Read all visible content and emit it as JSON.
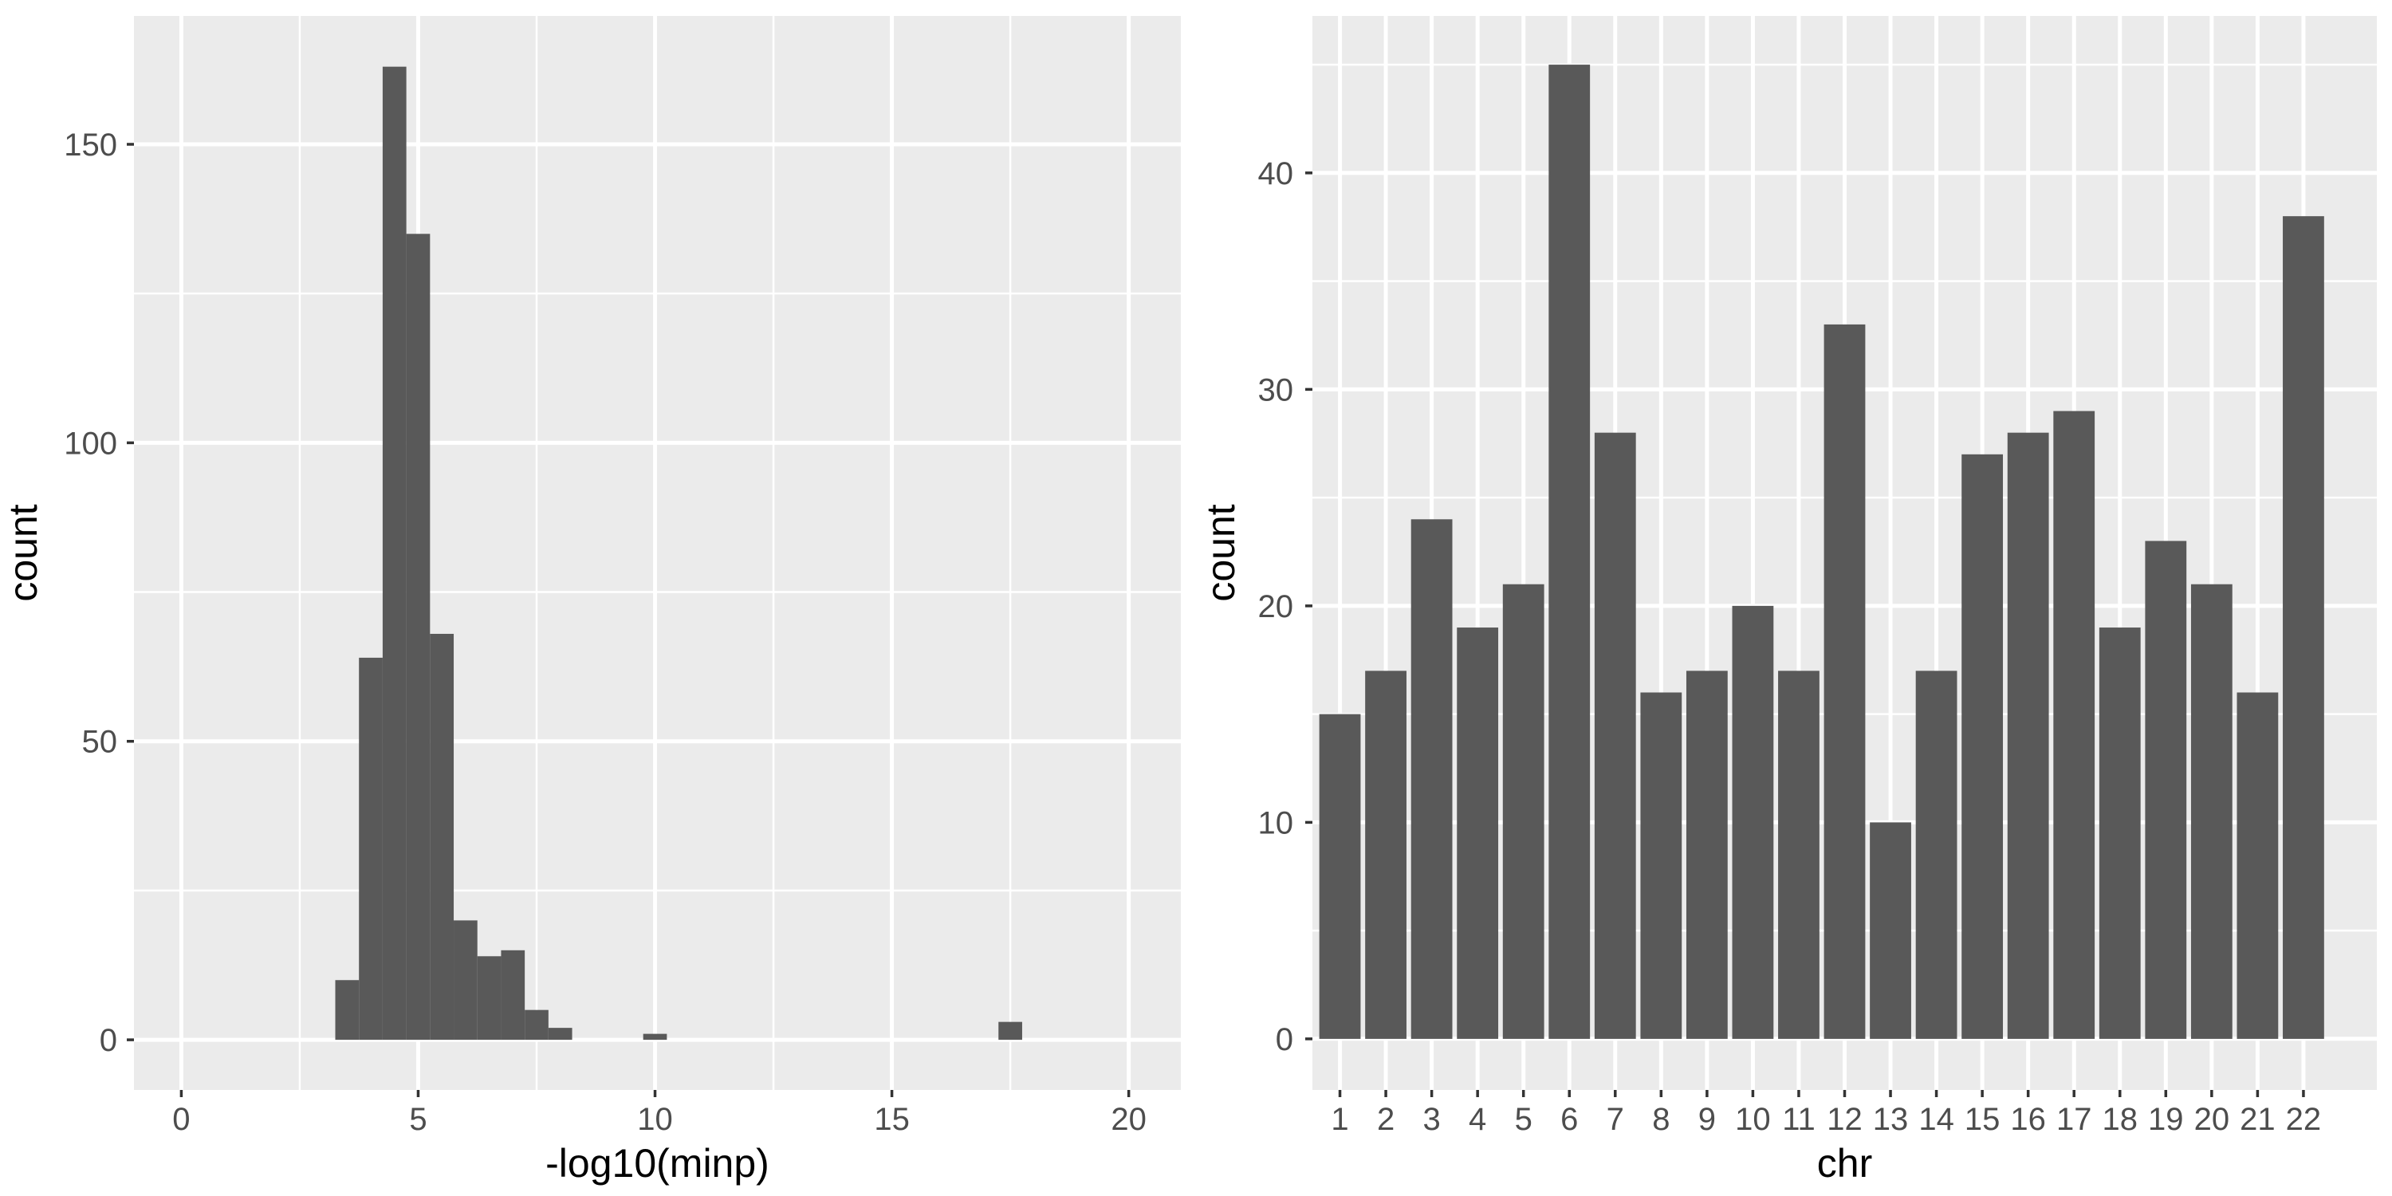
{
  "page": {
    "background": "#FFFFFF"
  },
  "style": {
    "panel_bg": "#EBEBEB",
    "grid_color": "#FFFFFF",
    "bar_fill": "#595959",
    "tick_color": "#333333",
    "tick_label_color": "#4D4D4D",
    "axis_title_color": "#000000"
  },
  "chart_data": [
    {
      "type": "histogram",
      "title": "",
      "xlabel": "-log10(minp)",
      "ylabel": "count",
      "x_ticks": [
        0,
        5,
        10,
        15,
        20
      ],
      "y_ticks": [
        0,
        50,
        100,
        150
      ],
      "xlim": [
        -1.0,
        21.1
      ],
      "ylim": [
        -8.4,
        171.5
      ],
      "grid": true,
      "legend_position": "none",
      "binwidth": 0.5,
      "bins": [
        {
          "x0": 3.25,
          "count": 10
        },
        {
          "x0": 3.75,
          "count": 64
        },
        {
          "x0": 4.25,
          "count": 163
        },
        {
          "x0": 4.75,
          "count": 135
        },
        {
          "x0": 5.25,
          "count": 68
        },
        {
          "x0": 5.75,
          "count": 20
        },
        {
          "x0": 6.25,
          "count": 14
        },
        {
          "x0": 6.75,
          "count": 15
        },
        {
          "x0": 7.25,
          "count": 5
        },
        {
          "x0": 7.75,
          "count": 2
        },
        {
          "x0": 9.75,
          "count": 1
        },
        {
          "x0": 17.25,
          "count": 3
        }
      ]
    },
    {
      "type": "bar",
      "title": "",
      "xlabel": "chr",
      "ylabel": "count",
      "categories": [
        "1",
        "2",
        "3",
        "4",
        "5",
        "6",
        "7",
        "8",
        "9",
        "10",
        "11",
        "12",
        "13",
        "14",
        "15",
        "16",
        "17",
        "18",
        "19",
        "20",
        "21",
        "22"
      ],
      "values": [
        15,
        17,
        24,
        19,
        21,
        45,
        28,
        16,
        17,
        20,
        17,
        33,
        10,
        17,
        27,
        28,
        29,
        19,
        23,
        21,
        16,
        38
      ],
      "y_ticks": [
        0,
        10,
        20,
        30,
        40
      ],
      "ylim": [
        -2.36,
        47.25
      ],
      "grid": true,
      "legend_position": "none"
    }
  ]
}
